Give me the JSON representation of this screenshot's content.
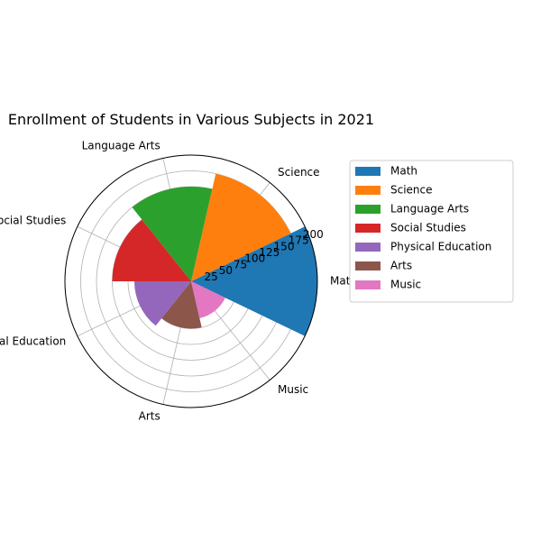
{
  "chart_data": {
    "type": "polar-bar",
    "title": "Enrollment of Students in Various Subjects in 2021",
    "categories": [
      "Math",
      "Science",
      "Language Arts",
      "Social Studies",
      "Physical Education",
      "Arts",
      "Music"
    ],
    "values": [
      200,
      175,
      150,
      125,
      90,
      75,
      60
    ],
    "colors": [
      "#1f77b4",
      "#ff7f0e",
      "#2ca02c",
      "#d62728",
      "#9467bd",
      "#8c564b",
      "#e377c2"
    ],
    "rticks": [
      25,
      50,
      75,
      100,
      125,
      150,
      175,
      200
    ],
    "rlim": [
      0,
      200
    ],
    "grid": true,
    "legend_position": "right"
  }
}
